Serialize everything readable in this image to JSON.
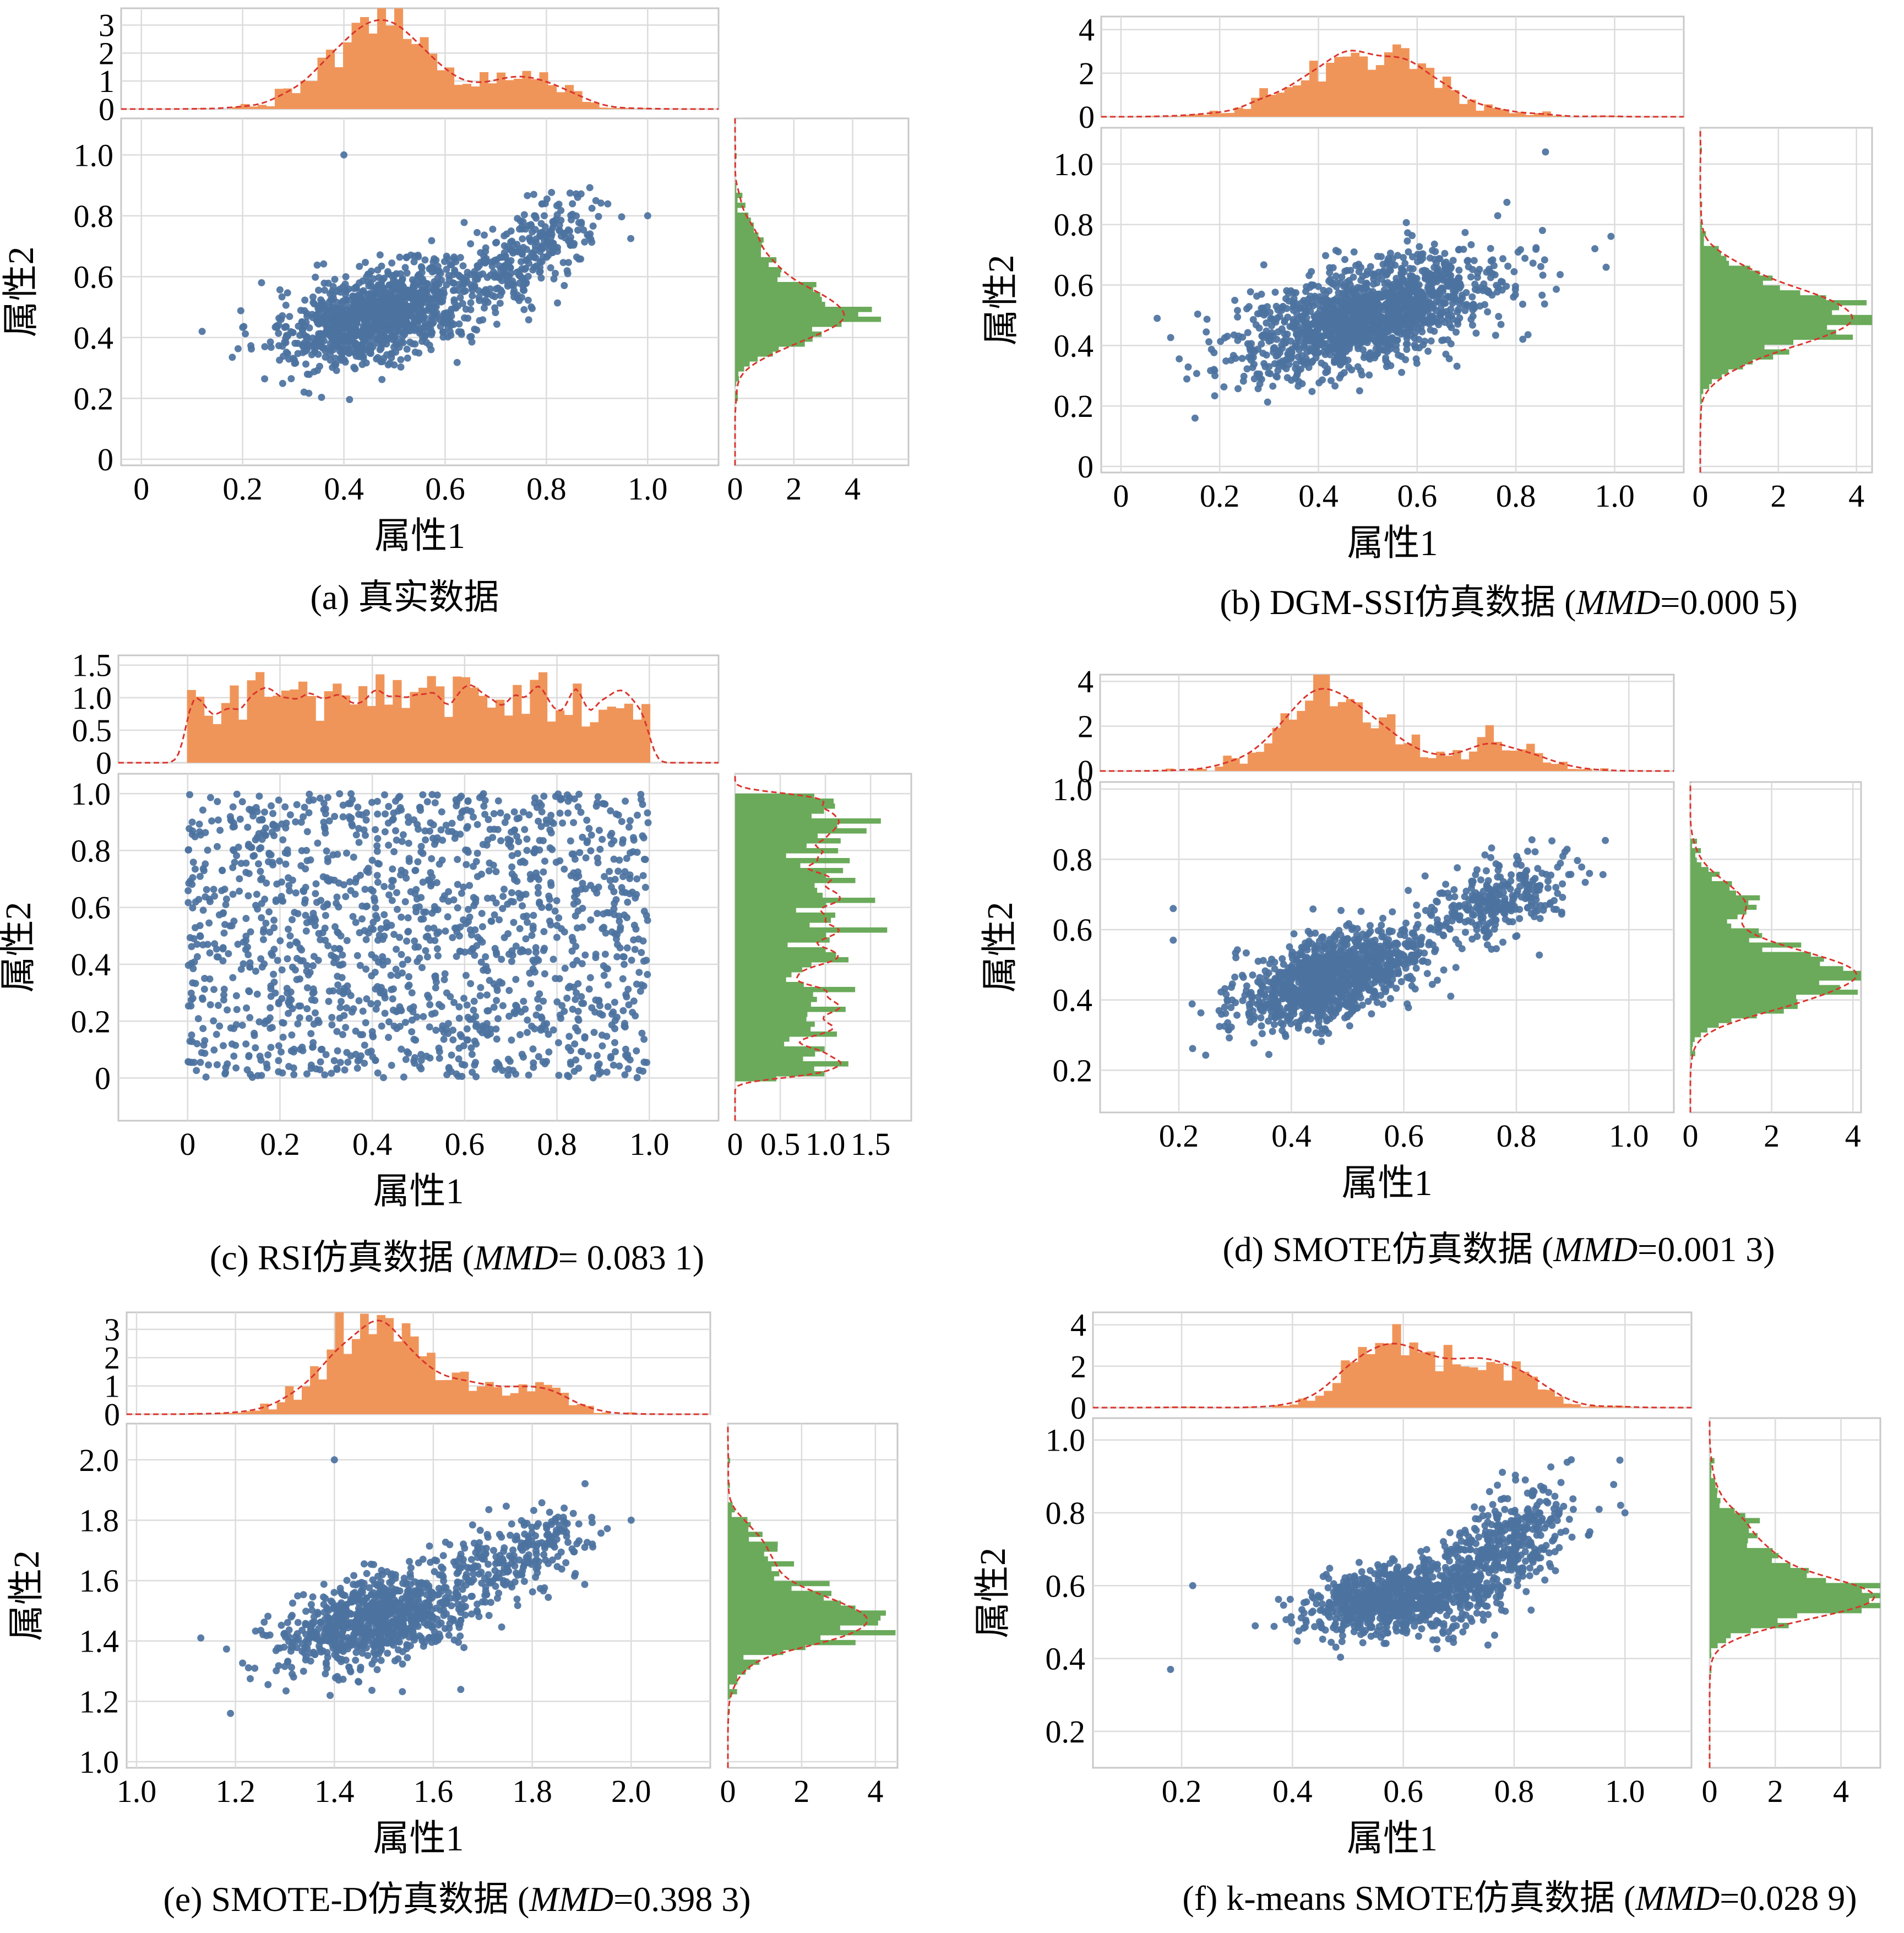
{
  "figure": {
    "colors": {
      "scatter": "#4c72a0",
      "hist_x": "#f0955a",
      "hist_y": "#6aaa5a",
      "kde": "#d9352d"
    }
  },
  "chart_data": [
    {
      "id": "a",
      "type": "scatter",
      "caption": "(a) 真实数据",
      "caption_parts": [
        {
          "text": "(a) 真实数据",
          "italic": false
        }
      ],
      "xlabel": "属性1",
      "ylabel": "属性2",
      "xlim": [
        -0.04,
        1.14
      ],
      "ylim": [
        -0.02,
        1.12
      ],
      "x_ticks": [
        0,
        0.2,
        0.4,
        0.6,
        0.8,
        1.0
      ],
      "x_tick_labels": [
        "0",
        "0.2",
        "0.4",
        "0.6",
        "0.8",
        "1.0"
      ],
      "y_ticks": [
        0,
        0.2,
        0.4,
        0.6,
        0.8,
        1.0
      ],
      "y_tick_labels": [
        "0",
        "0.2",
        "0.4",
        "0.6",
        "0.8",
        "1.0"
      ],
      "top_hist_ticks": [
        0,
        1,
        2,
        3
      ],
      "top_hist_tick_labels": [
        "0",
        "1",
        "2",
        "3"
      ],
      "top_hist_ylim": [
        0,
        3.6
      ],
      "right_hist_ticks": [
        0,
        2,
        4
      ],
      "right_hist_tick_labels": [
        "0",
        "2",
        "4"
      ],
      "right_hist_xlim": [
        0,
        5.9
      ],
      "grid": true,
      "distribution": {
        "n": 1400,
        "clusters": [
          {
            "w": 0.78,
            "mx": 0.48,
            "my": 0.48,
            "sx": 0.095,
            "sy": 0.085,
            "rho": 0.45
          },
          {
            "w": 0.22,
            "mx": 0.76,
            "my": 0.68,
            "sx": 0.08,
            "sy": 0.09,
            "rho": 0.55
          }
        ]
      },
      "outliers": [
        [
          0.4,
          1.0
        ],
        [
          1.0,
          0.8
        ],
        [
          0.12,
          0.42
        ]
      ]
    },
    {
      "id": "b",
      "type": "scatter",
      "caption": "(b) DGM-SSI仿真数据 (MMD=0.000 5)",
      "caption_parts": [
        {
          "text": "(b) DGM-SSI仿真数据 (",
          "italic": false
        },
        {
          "text": "MMD",
          "italic": true
        },
        {
          "text": "=0.000 5)",
          "italic": false
        }
      ],
      "xlabel": "属性1",
      "ylabel": "属性2",
      "xlim": [
        -0.04,
        1.14
      ],
      "ylim": [
        -0.02,
        1.12
      ],
      "x_ticks": [
        0,
        0.2,
        0.4,
        0.6,
        0.8,
        1.0
      ],
      "x_tick_labels": [
        "0",
        "0.2",
        "0.4",
        "0.6",
        "0.8",
        "1.0"
      ],
      "y_ticks": [
        0,
        0.2,
        0.4,
        0.6,
        0.8,
        1.0
      ],
      "y_tick_labels": [
        "0",
        "0.2",
        "0.4",
        "0.6",
        "0.8",
        "1.0"
      ],
      "top_hist_ticks": [
        0,
        2,
        4
      ],
      "top_hist_tick_labels": [
        "0",
        "2",
        "4"
      ],
      "top_hist_ylim": [
        0,
        4.6
      ],
      "right_hist_ticks": [
        0,
        2,
        4
      ],
      "right_hist_tick_labels": [
        "0",
        "2",
        "4"
      ],
      "right_hist_xlim": [
        0,
        4.4
      ],
      "grid": true,
      "distribution": {
        "n": 1500,
        "clusters": [
          {
            "w": 1.0,
            "mx": 0.5,
            "my": 0.5,
            "sx": 0.13,
            "sy": 0.1,
            "rho": 0.55
          }
        ]
      },
      "outliers": [
        [
          0.86,
          1.04
        ],
        [
          0.15,
          0.16
        ],
        [
          0.96,
          0.72
        ]
      ]
    },
    {
      "id": "c",
      "type": "scatter",
      "caption": "(c)  RSI仿真数据 (MMD= 0.083 1)",
      "caption_parts": [
        {
          "text": "(c)  RSI仿真数据 (",
          "italic": false
        },
        {
          "text": "MMD",
          "italic": true
        },
        {
          "text": "= 0.083 1)",
          "italic": false
        }
      ],
      "xlabel": "属性1",
      "ylabel": "属性2",
      "xlim": [
        -0.15,
        1.15
      ],
      "ylim": [
        -0.15,
        1.07
      ],
      "x_ticks": [
        0,
        0.2,
        0.4,
        0.6,
        0.8,
        1.0
      ],
      "x_tick_labels": [
        "0",
        "0.2",
        "0.4",
        "0.6",
        "0.8",
        "1.0"
      ],
      "y_ticks": [
        0,
        0.2,
        0.4,
        0.6,
        0.8,
        1.0
      ],
      "y_tick_labels": [
        "0",
        "0.2",
        "0.4",
        "0.6",
        "0.8",
        "1.0"
      ],
      "top_hist_ticks": [
        0,
        0.5,
        1.0,
        1.5
      ],
      "top_hist_tick_labels": [
        "0",
        "0.5",
        "1.0",
        "1.5"
      ],
      "top_hist_ylim": [
        0,
        1.65
      ],
      "right_hist_ticks": [
        0,
        0.5,
        1.0,
        1.5
      ],
      "right_hist_tick_labels": [
        "0",
        "0.5",
        "1.0",
        "1.5"
      ],
      "right_hist_xlim": [
        0,
        1.95
      ],
      "grid": true,
      "distribution": {
        "n": 1500,
        "uniform": [
          0,
          1
        ]
      },
      "outliers": []
    },
    {
      "id": "d",
      "type": "scatter",
      "caption": "(d) SMOTE仿真数据 (MMD=0.001 3)",
      "caption_parts": [
        {
          "text": "(d) SMOTE仿真数据 (",
          "italic": false
        },
        {
          "text": "MMD",
          "italic": true
        },
        {
          "text": "=0.001 3)",
          "italic": false
        }
      ],
      "xlabel": "属性1",
      "ylabel": "属性2",
      "xlim": [
        0.06,
        1.08
      ],
      "ylim": [
        0.08,
        1.02
      ],
      "x_ticks": [
        0.2,
        0.4,
        0.6,
        0.8,
        1.0
      ],
      "x_tick_labels": [
        "0.2",
        "0.4",
        "0.6",
        "0.8",
        "1.0"
      ],
      "y_ticks": [
        0.2,
        0.4,
        0.6,
        0.8,
        1.0
      ],
      "y_tick_labels": [
        "0.2",
        "0.4",
        "0.6",
        "0.8",
        "1.0"
      ],
      "top_hist_ticks": [
        0,
        2,
        4
      ],
      "top_hist_tick_labels": [
        "0",
        "2",
        "4"
      ],
      "top_hist_ylim": [
        0,
        4.3
      ],
      "right_hist_ticks": [
        0,
        2,
        4
      ],
      "right_hist_tick_labels": [
        "0",
        "2",
        "4"
      ],
      "right_hist_xlim": [
        0,
        4.2
      ],
      "grid": true,
      "distribution": {
        "n": 1400,
        "clusters": [
          {
            "w": 0.8,
            "mx": 0.47,
            "my": 0.46,
            "sx": 0.08,
            "sy": 0.07,
            "rho": 0.5
          },
          {
            "w": 0.2,
            "mx": 0.76,
            "my": 0.68,
            "sx": 0.07,
            "sy": 0.07,
            "rho": 0.5
          }
        ]
      },
      "outliers": [
        [
          0.19,
          0.66
        ],
        [
          0.93,
          0.76
        ],
        [
          0.19,
          0.57
        ]
      ]
    },
    {
      "id": "e",
      "type": "scatter",
      "caption": "(e) SMOTE-D仿真数据 (MMD=0.398 3)",
      "caption_parts": [
        {
          "text": "(e) SMOTE-D仿真数据 (",
          "italic": false
        },
        {
          "text": "MMD",
          "italic": true
        },
        {
          "text": "=0.398 3)",
          "italic": false
        }
      ],
      "xlabel": "属性1",
      "ylabel": "属性2",
      "xlim": [
        0.98,
        2.16
      ],
      "ylim": [
        0.98,
        2.12
      ],
      "x_ticks": [
        1.0,
        1.2,
        1.4,
        1.6,
        1.8,
        2.0
      ],
      "x_tick_labels": [
        "1.0",
        "1.2",
        "1.4",
        "1.6",
        "1.8",
        "2.0"
      ],
      "y_ticks": [
        1.0,
        1.2,
        1.4,
        1.6,
        1.8,
        2.0
      ],
      "y_tick_labels": [
        "1.0",
        "1.2",
        "1.4",
        "1.6",
        "1.8",
        "2.0"
      ],
      "top_hist_ticks": [
        0,
        1,
        2,
        3
      ],
      "top_hist_tick_labels": [
        "0",
        "1",
        "2",
        "3"
      ],
      "top_hist_ylim": [
        0,
        3.6
      ],
      "right_hist_ticks": [
        0,
        2,
        4
      ],
      "right_hist_tick_labels": [
        "0",
        "2",
        "4"
      ],
      "right_hist_xlim": [
        0,
        4.6
      ],
      "grid": true,
      "distribution": {
        "n": 1100,
        "clusters": [
          {
            "w": 0.78,
            "mx": 1.48,
            "my": 1.47,
            "sx": 0.095,
            "sy": 0.08,
            "rho": 0.45
          },
          {
            "w": 0.22,
            "mx": 1.76,
            "my": 1.68,
            "sx": 0.08,
            "sy": 0.08,
            "rho": 0.55
          }
        ]
      },
      "outliers": [
        [
          1.4,
          2.0
        ],
        [
          2.0,
          1.8
        ],
        [
          1.13,
          1.41
        ],
        [
          1.19,
          1.16
        ]
      ]
    },
    {
      "id": "f",
      "type": "scatter",
      "caption": "(f) k-means SMOTE仿真数据 (MMD=0.028 9)",
      "caption_parts": [
        {
          "text": "(f) k-means SMOTE仿真数据 (",
          "italic": false
        },
        {
          "text": "MMD",
          "italic": true
        },
        {
          "text": "=0.028 9)",
          "italic": false
        }
      ],
      "xlabel": "属性1",
      "ylabel": "属性2",
      "xlim": [
        0.04,
        1.12
      ],
      "ylim": [
        0.1,
        1.06
      ],
      "x_ticks": [
        0.2,
        0.4,
        0.6,
        0.8,
        1.0
      ],
      "x_tick_labels": [
        "0.2",
        "0.4",
        "0.6",
        "0.8",
        "1.0"
      ],
      "y_ticks": [
        0.2,
        0.4,
        0.6,
        0.8,
        1.0
      ],
      "y_tick_labels": [
        "0.2",
        "0.4",
        "0.6",
        "0.8",
        "1.0"
      ],
      "top_hist_ticks": [
        0,
        2,
        4
      ],
      "top_hist_tick_labels": [
        "0",
        "2",
        "4"
      ],
      "top_hist_ylim": [
        0,
        4.6
      ],
      "right_hist_ticks": [
        0,
        2,
        4
      ],
      "right_hist_tick_labels": [
        "0",
        "2",
        "4"
      ],
      "right_hist_xlim": [
        0,
        5.2
      ],
      "grid": true,
      "distribution": {
        "n": 1300,
        "clusters": [
          {
            "w": 0.62,
            "mx": 0.58,
            "my": 0.56,
            "sx": 0.08,
            "sy": 0.05,
            "rho": 0.3
          },
          {
            "w": 0.38,
            "mx": 0.77,
            "my": 0.69,
            "sx": 0.07,
            "sy": 0.09,
            "rho": 0.6
          }
        ]
      },
      "outliers": [
        [
          0.22,
          0.6
        ],
        [
          0.18,
          0.37
        ],
        [
          1.0,
          0.8
        ]
      ]
    }
  ]
}
